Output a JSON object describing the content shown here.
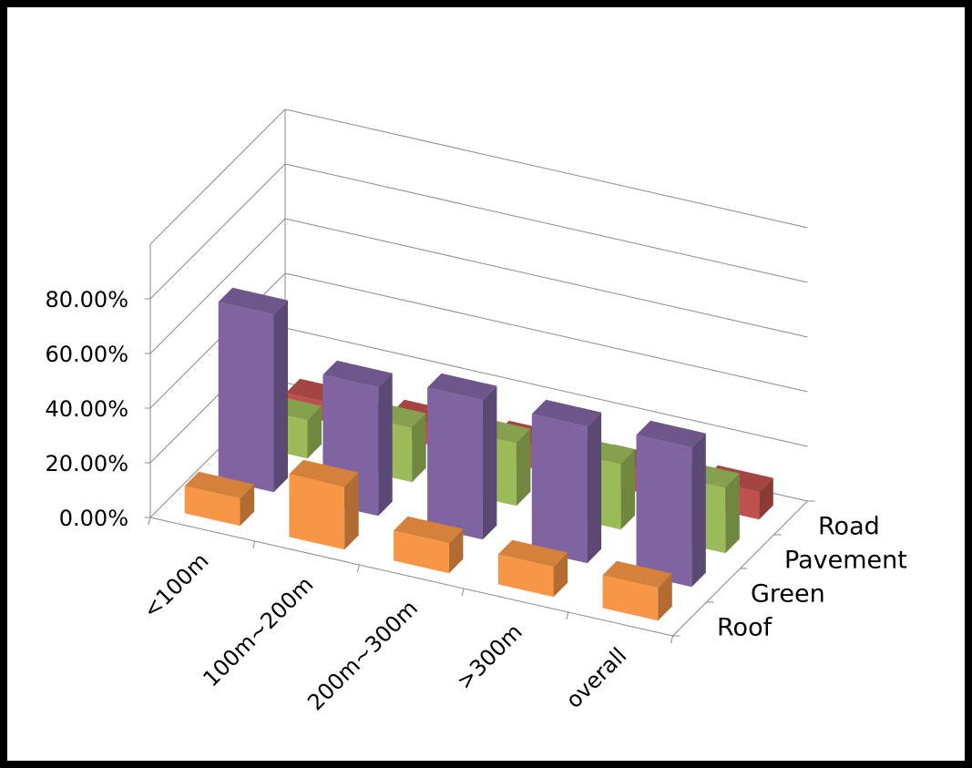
{
  "chart_data": {
    "type": "bar",
    "variant": "3d-column",
    "categories": [
      "<100m",
      "100m~200m",
      "200m~300m",
      ">300m",
      "overall"
    ],
    "y_tick_labels": [
      "0.00%",
      "20.00%",
      "40.00%",
      "60.00%",
      "80.00%"
    ],
    "ylim": [
      0,
      100
    ],
    "grid": true,
    "series": [
      {
        "name": "Roof",
        "values": [
          10,
          23,
          11,
          11,
          12
        ],
        "color": "#F79646"
      },
      {
        "name": "Green",
        "values": [
          65,
          47,
          51,
          50,
          51
        ],
        "color": "#8064A2"
      },
      {
        "name": "Pavement",
        "values": [
          14,
          20,
          23,
          24,
          24
        ],
        "color": "#9BBB59"
      },
      {
        "name": "Road",
        "values": [
          7,
          8,
          9,
          9,
          10
        ],
        "color": "#C0504D"
      }
    ]
  }
}
